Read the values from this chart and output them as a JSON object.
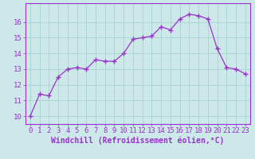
{
  "x": [
    0,
    1,
    2,
    3,
    4,
    5,
    6,
    7,
    8,
    9,
    10,
    11,
    12,
    13,
    14,
    15,
    16,
    17,
    18,
    19,
    20,
    21,
    22,
    23
  ],
  "y": [
    10.0,
    11.4,
    11.3,
    12.5,
    13.0,
    13.1,
    13.0,
    13.6,
    13.5,
    13.5,
    14.0,
    14.9,
    15.0,
    15.1,
    15.7,
    15.5,
    16.2,
    16.5,
    16.4,
    16.2,
    14.3,
    13.1,
    13.0,
    12.7
  ],
  "line_color": "#9932CC",
  "marker": "+",
  "marker_size": 4,
  "bg_color": "#cce8e8",
  "grid_color": "#aad4d4",
  "xlabel": "Windchill (Refroidissement éolien,°C)",
  "ylim": [
    9.5,
    17.2
  ],
  "xlim": [
    -0.5,
    23.5
  ],
  "yticks": [
    10,
    11,
    12,
    13,
    14,
    15,
    16
  ],
  "xticks": [
    0,
    1,
    2,
    3,
    4,
    5,
    6,
    7,
    8,
    9,
    10,
    11,
    12,
    13,
    14,
    15,
    16,
    17,
    18,
    19,
    20,
    21,
    22,
    23
  ],
  "font_color": "#9932CC",
  "tick_fontsize": 6.5,
  "xlabel_fontsize": 7.0
}
